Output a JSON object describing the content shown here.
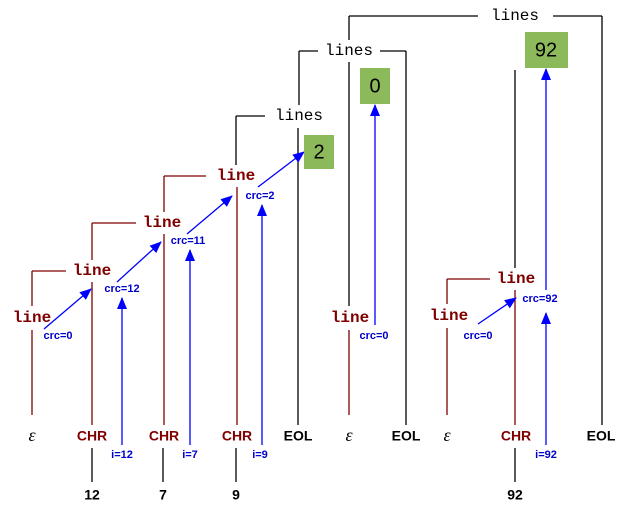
{
  "lines_nodes": [
    "lines",
    "lines",
    "lines"
  ],
  "values": [
    "92",
    "0",
    "2"
  ],
  "line_nodes": [
    "line",
    "line",
    "line",
    "line",
    "line",
    "line",
    "line"
  ],
  "crc_labels": [
    "crc=2",
    "crc=11",
    "crc=12",
    "crc=0",
    "crc=0",
    "crc=92",
    "crc=0"
  ],
  "terminals": [
    "ε",
    "CHR",
    "CHR",
    "CHR",
    "EOL",
    "ε",
    "EOL",
    "ε",
    "CHR",
    "EOL"
  ],
  "index_labels": [
    "i=12",
    "i=7",
    "i=9",
    "i=92"
  ],
  "numbers": [
    "12",
    "7",
    "9",
    "92"
  ]
}
